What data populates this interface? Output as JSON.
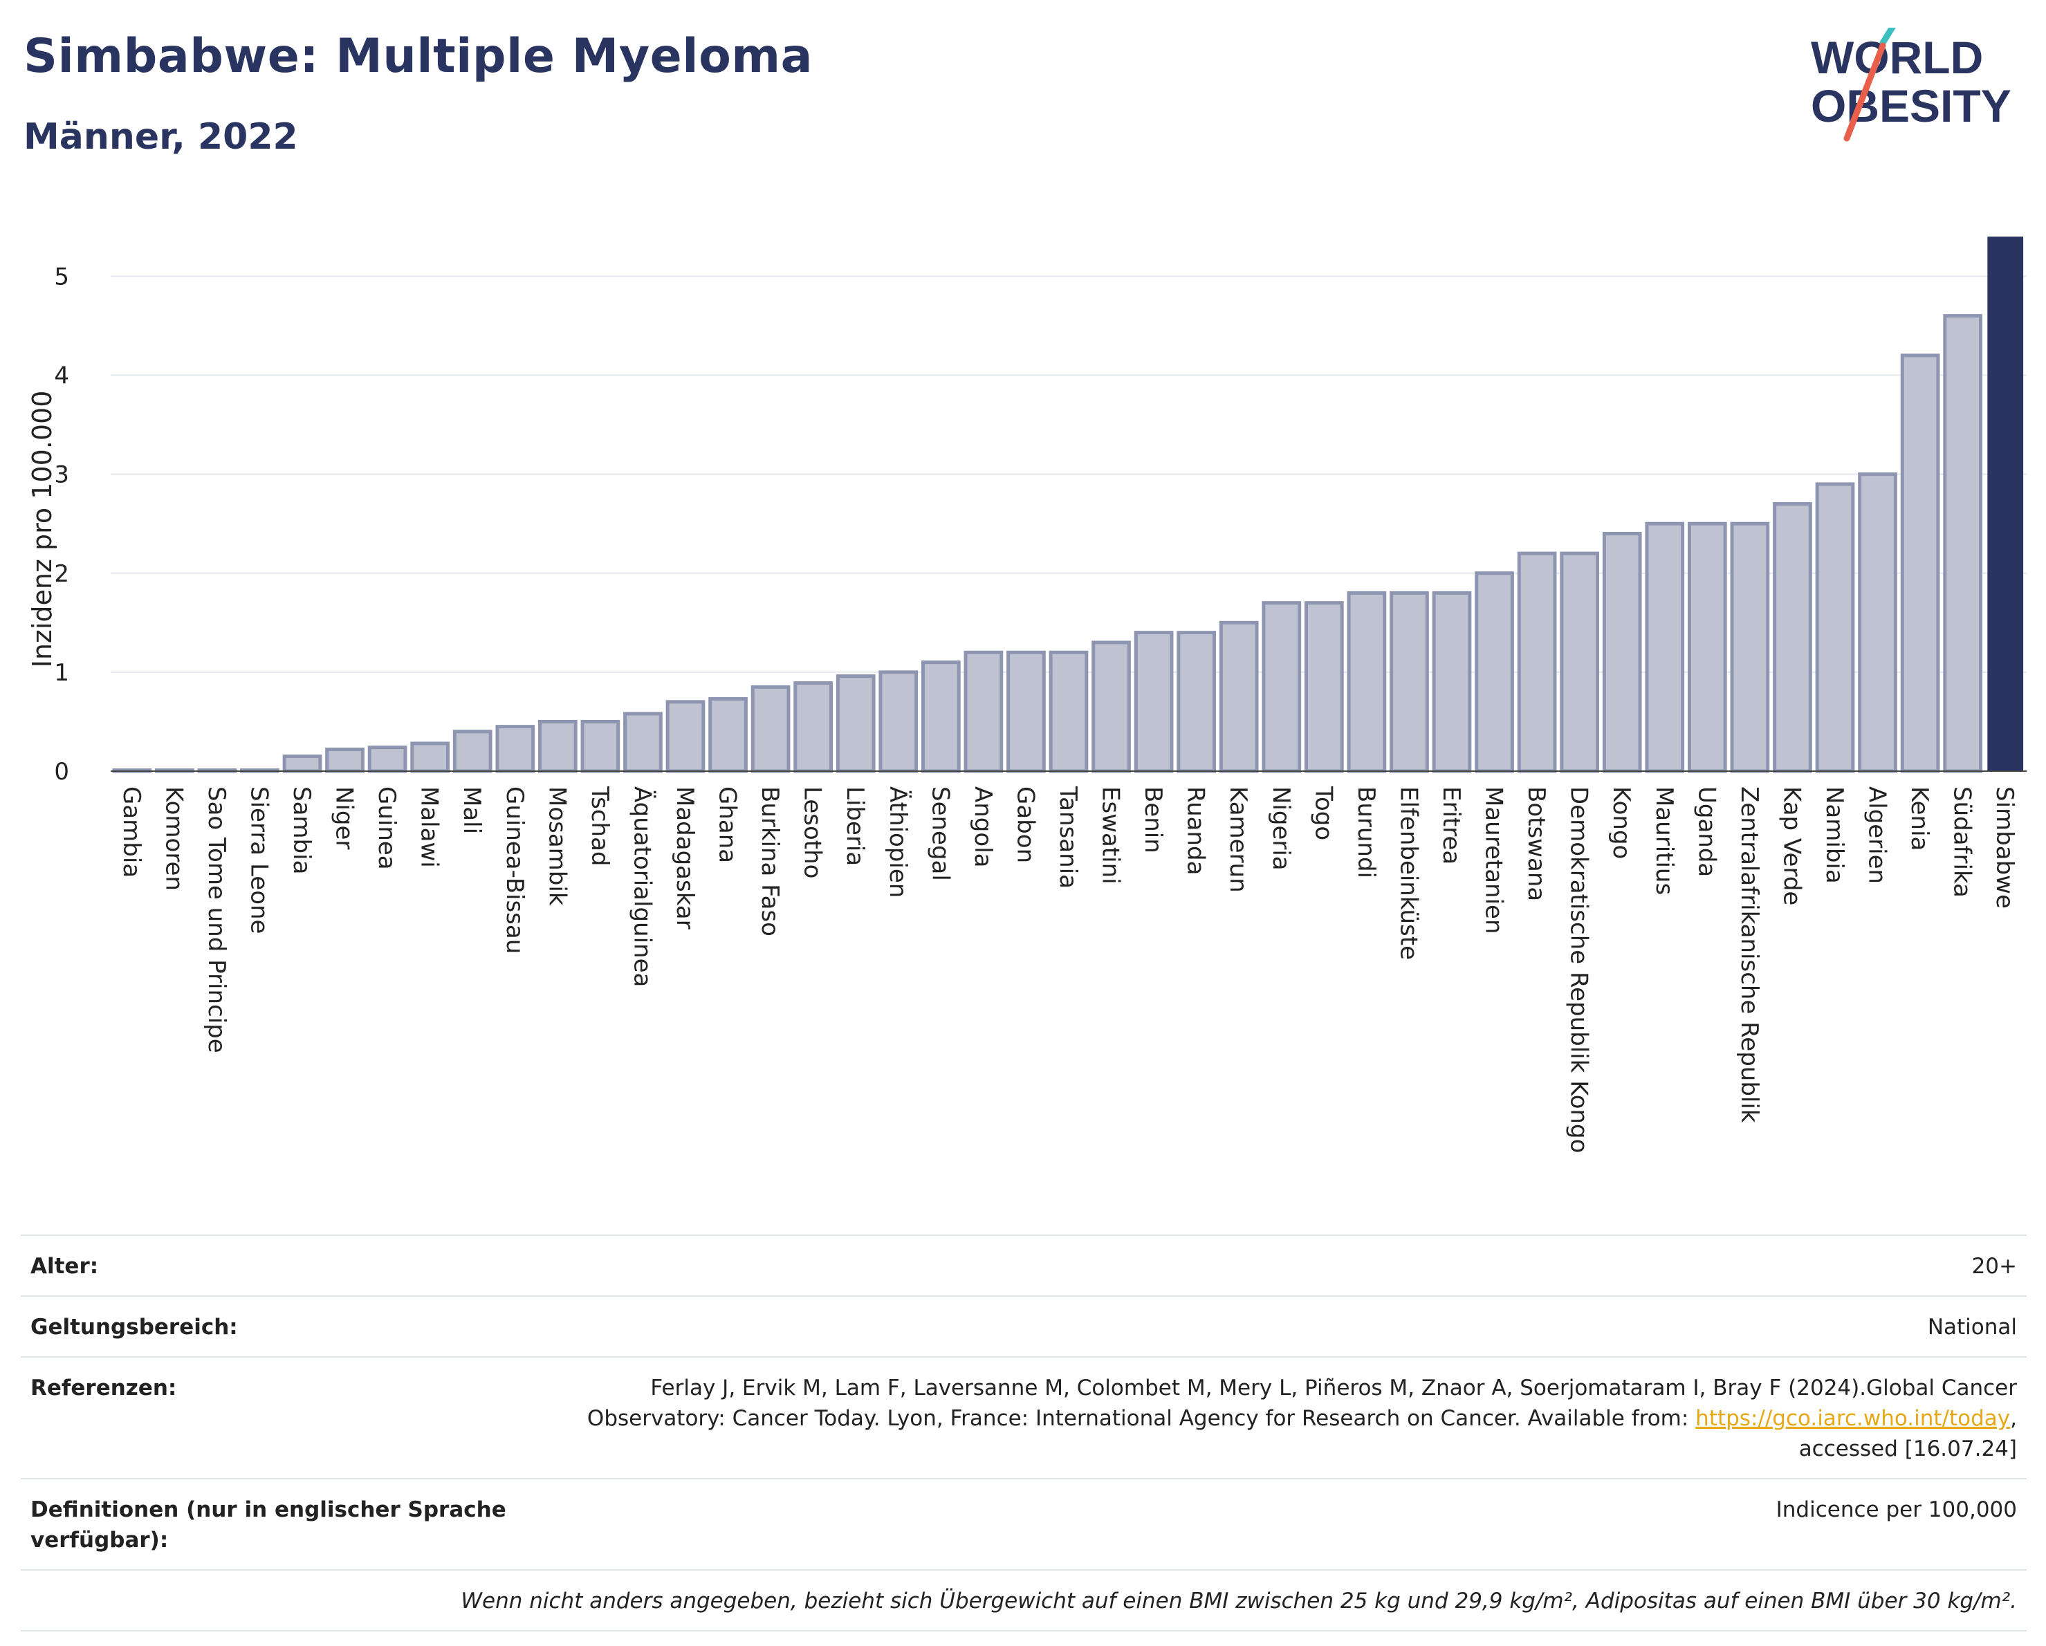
{
  "header": {
    "title": "Simbabwe: Multiple Myeloma",
    "subtitle": "Männer, 2022"
  },
  "logo": {
    "line1": "WORLD",
    "line2": "OBESITY",
    "colors": {
      "text": "#2a3460",
      "slash_red": "#e8604c",
      "slash_teal": "#3bbfbf"
    }
  },
  "colors": {
    "bar_fill": "#bec2d1",
    "bar_stroke": "#8e95b0",
    "highlight": "#2a3460",
    "grid": "#e6e8ef",
    "axis_text": "#222222"
  },
  "chart_data": {
    "type": "bar",
    "title": "Simbabwe: Multiple Myeloma",
    "subtitle": "Männer, 2022",
    "xlabel": "",
    "ylabel": "Inzidenz pro 100.000",
    "ylim": [
      0,
      5.45
    ],
    "yticks": [
      0,
      1,
      2,
      3,
      4,
      5
    ],
    "grid": true,
    "highlight_category": "Simbabwe",
    "categories": [
      "Gambia",
      "Komoren",
      "Sao Tome und Principe",
      "Sierra Leone",
      "Sambia",
      "Niger",
      "Guinea",
      "Malawi",
      "Mali",
      "Guinea-Bissau",
      "Mosambik",
      "Tschad",
      "Äquatorialguinea",
      "Madagaskar",
      "Ghana",
      "Burkina Faso",
      "Lesotho",
      "Liberia",
      "Äthiopien",
      "Senegal",
      "Angola",
      "Gabon",
      "Tansania",
      "Eswatini",
      "Benin",
      "Ruanda",
      "Kamerun",
      "Nigeria",
      "Togo",
      "Burundi",
      "Elfenbeinküste",
      "Eritrea",
      "Mauretanien",
      "Botswana",
      "Demokratische Republik Kongo",
      "Kongo",
      "Mauritius",
      "Uganda",
      "Zentralafrikanische Republik",
      "Kap Verde",
      "Namibia",
      "Algerien",
      "Kenia",
      "Südafrika",
      "Simbabwe"
    ],
    "values": [
      0.01,
      0.01,
      0.01,
      0.01,
      0.15,
      0.22,
      0.24,
      0.28,
      0.4,
      0.45,
      0.5,
      0.5,
      0.58,
      0.7,
      0.73,
      0.85,
      0.89,
      0.96,
      1.0,
      1.1,
      1.2,
      1.2,
      1.2,
      1.3,
      1.4,
      1.4,
      1.5,
      1.7,
      1.7,
      1.8,
      1.8,
      1.8,
      2.0,
      2.2,
      2.2,
      2.4,
      2.5,
      2.5,
      2.5,
      2.7,
      2.9,
      3.0,
      4.2,
      4.6,
      5.4
    ]
  },
  "footer": {
    "age_label": "Alter:",
    "age_value": "20+",
    "scope_label": "Geltungsbereich:",
    "scope_value": "National",
    "refs_label": "Referenzen:",
    "refs_text_1": "Ferlay J, Ervik M, Lam F, Laversanne M, Colombet M, Mery L, Piñeros M, Znaor A, Soerjomataram I, Bray F (2024).Global Cancer Observatory: Cancer Today. Lyon, France: International Agency for Research on Cancer. Available from: ",
    "refs_link": "https://gco.iarc.who.int/today",
    "refs_text_2": ", accessed [16.07.24]",
    "defs_label": "Definitionen (nur in englischer Sprache verfügbar):",
    "defs_value": "Indicence per 100,000",
    "note": "Wenn nicht anders angegeben, bezieht sich Übergewicht auf einen BMI zwischen 25 kg und 29,9 kg/m², Adipositas auf einen BMI über 30 kg/m²."
  }
}
